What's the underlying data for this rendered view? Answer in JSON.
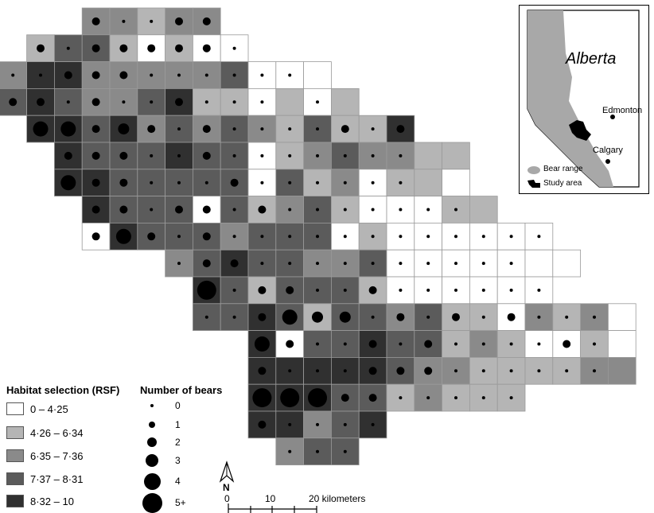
{
  "rsf_colors": {
    "1": "#ffffff",
    "2": "#b5b5b5",
    "3": "#8a8a8a",
    "4": "#5b5b5b",
    "5": "#303030"
  },
  "grid": [
    "....33233......",
    "..24421211.....",
    ".355333334111..",
    ".4543345221212.",
    "..55453434324225",
    "...544454412343322",
    "...554444414231221",
    "....544414234211122..",
    "....15444344412111111",
    ".......345443341111111",
    "........5424442111111",
    "........4454244342213231",
    "..........5144544232112153",
    "..........5555543322223332",
    "..........5554423222.....",
    "..........55345..........",
    "...........344..........."
  ],
  "bears": [
    "....10011010...",
    "..10111110.....",
    ".00111000000..",
    ".1101001000.0.",
    "..33121010000101",
    "...1110010000000",
    "...3110001000000",
    "....11011010000000..",
    "....13101000000000000",
    ".......0110000000000",
    "........4011001000000",
    "........001322010101000",
    "..........3100101000010",
    "..........1000111000000",
    "..........4441100000...",
    "..........10000.........",
    "...........000.........."
  ],
  "inset": {
    "title": "Alberta",
    "cities": [
      "Edmonton",
      "Calgary"
    ],
    "legend": [
      "Bear range",
      "Study area"
    ]
  },
  "legend_rsf": {
    "title": "Habitat selection (RSF)",
    "items": [
      {
        "label": "0 – 4·25",
        "color": "#ffffff"
      },
      {
        "label": "4·26 – 6·34",
        "color": "#b5b5b5"
      },
      {
        "label": "6·35 – 7·36",
        "color": "#8a8a8a"
      },
      {
        "label": "7·37 – 8·31",
        "color": "#5b5b5b"
      },
      {
        "label": "8·32 – 10",
        "color": "#303030"
      }
    ]
  },
  "legend_bears": {
    "title": "Number of bears",
    "items": [
      "0",
      "1",
      "2",
      "3",
      "4",
      "5+"
    ]
  },
  "scale": {
    "labels": [
      "0",
      "10",
      "20 kilometers"
    ],
    "north": "N"
  }
}
